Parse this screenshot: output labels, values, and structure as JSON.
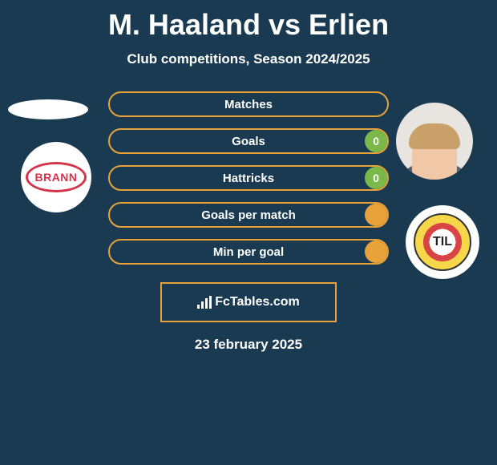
{
  "title": "M. Haaland vs Erlien",
  "subtitle": "Club competitions, Season 2024/2025",
  "date": "23 february 2025",
  "footer_label": "FcTables.com",
  "colors": {
    "accent": "#e8a23a",
    "green": "#7ab84a",
    "background": "#1a3a52"
  },
  "left_team": {
    "logo_label": "BRANN"
  },
  "right_team": {
    "logo_label": "TIL"
  },
  "stats": [
    {
      "label": "Matches",
      "border": "#e8a23a",
      "right_value": "",
      "fill_color": "",
      "fill_pct": 0
    },
    {
      "label": "Goals",
      "border": "#e8a23a",
      "right_value": "0",
      "fill_color": "#7ab84a",
      "fill_pct": 8
    },
    {
      "label": "Hattricks",
      "border": "#e8a23a",
      "right_value": "0",
      "fill_color": "#7ab84a",
      "fill_pct": 8
    },
    {
      "label": "Goals per match",
      "border": "#e8a23a",
      "right_value": "",
      "fill_color": "#e8a23a",
      "fill_pct": 8
    },
    {
      "label": "Min per goal",
      "border": "#e8a23a",
      "right_value": "",
      "fill_color": "#e8a23a",
      "fill_pct": 8
    }
  ]
}
